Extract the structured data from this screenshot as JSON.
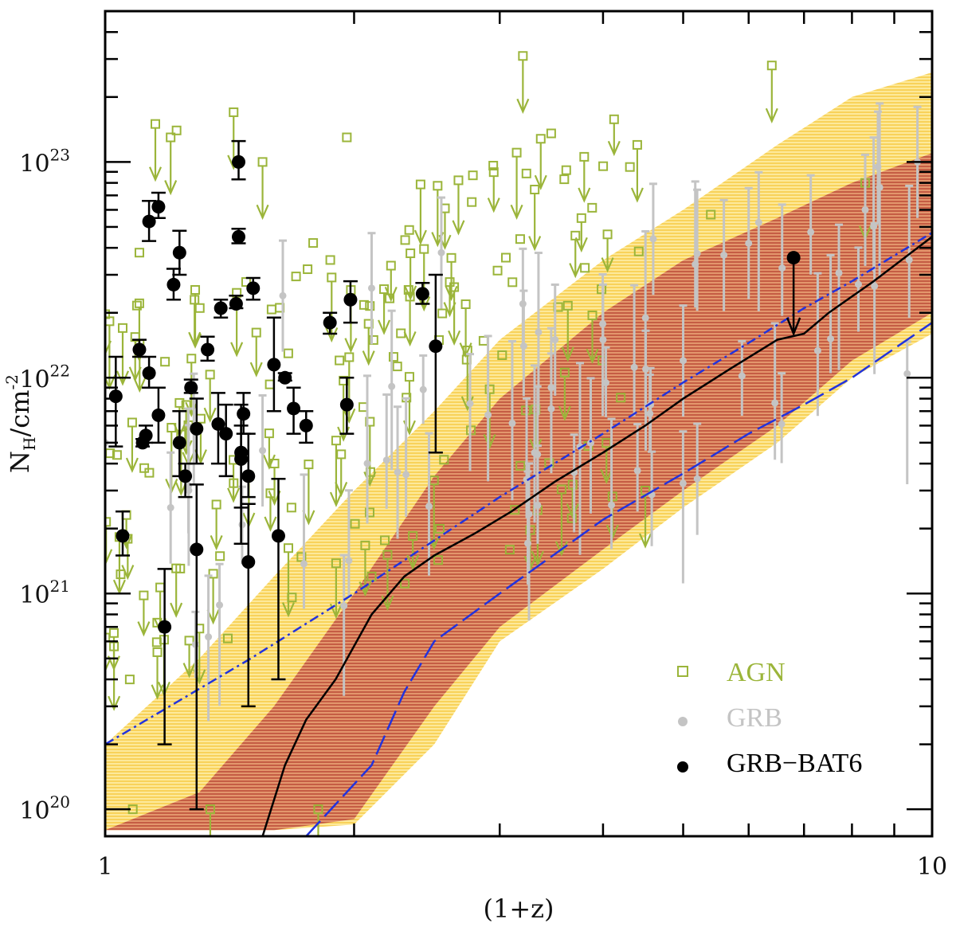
{
  "chart_data": {
    "type": "scatter",
    "xlabel": "(1+z)",
    "ylabel": "N_H/cm^-2",
    "xscale": "log",
    "yscale": "log",
    "xlim": [
      1,
      10
    ],
    "ylim": [
      7.5e+19,
      5e+23
    ],
    "x_tick_labels": [
      {
        "value": 1,
        "label": "1"
      },
      {
        "value": 10,
        "label": "10"
      }
    ],
    "y_tick_labels": [
      {
        "value": 1e+20,
        "base": "10",
        "exp": "20"
      },
      {
        "value": 1e+21,
        "base": "10",
        "exp": "21"
      },
      {
        "value": 1e+22,
        "base": "10",
        "exp": "22"
      },
      {
        "value": 1e+23,
        "base": "10",
        "exp": "23"
      }
    ],
    "colors": {
      "agn": "#9bb53a",
      "grb": "#c4c4c4",
      "bat6": "#000000",
      "outer_band": "#fbe487",
      "inner_band": "#cc6b4e",
      "model_line": "#000000",
      "blue_line": "#2233dd"
    },
    "bands": {
      "outer": {
        "x": [
          1.0,
          1.3,
          1.6,
          2.0,
          2.5,
          3.0,
          4.0,
          5.0,
          6.5,
          8.0,
          10.0
        ],
        "low": [
          8e+19,
          8e+19,
          8e+19,
          8.5e+19,
          2e+20,
          6e+20,
          1.3e+21,
          2.5e+21,
          5e+21,
          1e+22,
          1.6e+22
        ],
        "high": [
          2e+20,
          5e+20,
          1.2e+21,
          3e+21,
          7e+21,
          1.5e+22,
          3.5e+22,
          6e+22,
          1.2e+23,
          2e+23,
          2.6e+23
        ]
      },
      "inner": {
        "x": [
          1.0,
          1.3,
          1.6,
          2.0,
          2.5,
          3.0,
          4.0,
          5.0,
          6.5,
          8.0,
          10.0
        ],
        "low": [
          8e+19,
          8e+19,
          8e+19,
          9e+19,
          3e+20,
          7e+20,
          1.6e+21,
          3e+21,
          6e+21,
          1.2e+22,
          2e+22
        ],
        "high": [
          8e+19,
          1.2e+20,
          3e+20,
          1e+21,
          3.5e+21,
          8e+21,
          2e+22,
          3.5e+22,
          5.5e+22,
          8e+22,
          1.1e+23
        ]
      }
    },
    "series": [
      {
        "name": "model-median",
        "kind": "line",
        "x": [
          1.55,
          1.65,
          1.75,
          1.9,
          2.1,
          2.3,
          2.5,
          2.8,
          3.1,
          3.5,
          4.0,
          4.5,
          5.0,
          5.7,
          6.5,
          7.0,
          7.5,
          8.5,
          10.0
        ],
        "y": [
          7.5e+19,
          1.6e+20,
          2.6e+20,
          4e+20,
          8e+20,
          1.2e+21,
          1.5e+21,
          1.9e+21,
          2.4e+21,
          3.3e+21,
          4.5e+21,
          6e+21,
          8e+21,
          1.1e+22,
          1.5e+22,
          1.6e+22,
          2e+22,
          2.8e+22,
          4.5e+22
        ]
      },
      {
        "name": "dash-dot-upper",
        "kind": "line",
        "x": [
          1.0,
          1.5,
          2.0,
          3.0,
          4.0,
          5.0,
          6.0,
          7.0,
          8.0,
          10.0
        ],
        "y": [
          2e+20,
          5e+20,
          1e+21,
          2.8e+21,
          5.5e+21,
          9.5e+21,
          1.45e+22,
          2.1e+22,
          2.8e+22,
          4.7e+22
        ]
      },
      {
        "name": "dashed-lower",
        "kind": "line",
        "x": [
          1.75,
          2.1,
          2.3,
          2.5,
          3.0,
          4.0,
          5.0,
          6.0,
          7.0,
          8.0,
          10.0
        ],
        "y": [
          7.5e+19,
          1.6e+20,
          3.5e+20,
          6e+20,
          1e+21,
          2.2e+21,
          3.6e+21,
          5.5e+21,
          7.5e+21,
          1e+22,
          1.8e+22
        ]
      },
      {
        "name": "GRB-BAT6",
        "kind": "points",
        "points": [
          {
            "x": 1.03,
            "y": 8.2e+21,
            "lo": 4.8e+21,
            "hi": 1.25e+22
          },
          {
            "x": 1.05,
            "y": 1.85e+21,
            "lo": 1.5e+21,
            "hi": 2.4e+21
          },
          {
            "x": 1.1,
            "y": 1.35e+22,
            "lo": 1.25e+22,
            "hi": 1.5e+22
          },
          {
            "x": 1.11,
            "y": 5e+21,
            "lo": 4.8e+21,
            "hi": 5.2e+21
          },
          {
            "x": 1.12,
            "y": 5.4e+21,
            "lo": 5e+21,
            "hi": 6e+21
          },
          {
            "x": 1.13,
            "y": 1.05e+22,
            "lo": 9e+21,
            "hi": 1.25e+22
          },
          {
            "x": 1.13,
            "y": 5.3e+22,
            "lo": 4.3e+22,
            "hi": 6.6e+22
          },
          {
            "x": 1.16,
            "y": 6.2e+22,
            "lo": 5.5e+22,
            "hi": 7.2e+22
          },
          {
            "x": 1.16,
            "y": 6.7e+21,
            "lo": 5e+21,
            "hi": 9e+21
          },
          {
            "x": 1.18,
            "y": 7e+20,
            "lo": 2e+20,
            "hi": 1.3e+21
          },
          {
            "x": 1.21,
            "y": 2.7e+22,
            "lo": 2.3e+22,
            "hi": 3.2e+22
          },
          {
            "x": 1.23,
            "y": 3.8e+22,
            "lo": 3e+22,
            "hi": 4.8e+22
          },
          {
            "x": 1.23,
            "y": 5e+21,
            "lo": 3.5e+21,
            "hi": 7e+21
          },
          {
            "x": 1.25,
            "y": 3.5e+21,
            "lo": 2.8e+21,
            "hi": 4e+21
          },
          {
            "x": 1.27,
            "y": 9e+21,
            "lo": 8.5e+21,
            "hi": 9.8e+21
          },
          {
            "x": 1.29,
            "y": 5.8e+21,
            "lo": 4e+21,
            "hi": 8e+21
          },
          {
            "x": 1.29,
            "y": 1.6e+21,
            "lo": 1e+20,
            "hi": 3.2e+21
          },
          {
            "x": 1.33,
            "y": 1.35e+22,
            "lo": 1.2e+22,
            "hi": 1.55e+22
          },
          {
            "x": 1.37,
            "y": 6.1e+21,
            "lo": 4e+21,
            "hi": 8.5e+21
          },
          {
            "x": 1.38,
            "y": 2.1e+22,
            "lo": 1.9e+22,
            "hi": 2.3e+22
          },
          {
            "x": 1.4,
            "y": 5.5e+21,
            "lo": 3.5e+21,
            "hi": 7.5e+21
          },
          {
            "x": 1.44,
            "y": 2.2e+22,
            "lo": 2.1e+22,
            "hi": 2.4e+22
          },
          {
            "x": 1.45,
            "y": 4.5e+22,
            "lo": 4.2e+22,
            "hi": 4.9e+22
          },
          {
            "x": 1.45,
            "y": 1e+23,
            "lo": 8.3e+22,
            "hi": 1.25e+23
          },
          {
            "x": 1.46,
            "y": 4.5e+21,
            "lo": 1.7e+21,
            "hi": 7.5e+21
          },
          {
            "x": 1.46,
            "y": 4.2e+21,
            "lo": 2.5e+21,
            "hi": 6e+21
          },
          {
            "x": 1.47,
            "y": 6.8e+21,
            "lo": 5.5e+21,
            "hi": 8.5e+21
          },
          {
            "x": 1.49,
            "y": 3.5e+21,
            "lo": 2.8e+21,
            "hi": 5.5e+21
          },
          {
            "x": 1.49,
            "y": 1.4e+21,
            "lo": 3e+20,
            "hi": 2.6e+21
          },
          {
            "x": 1.51,
            "y": 2.6e+22,
            "lo": 2.3e+22,
            "hi": 2.9e+22
          },
          {
            "x": 1.6,
            "y": 1.15e+22,
            "lo": 7e+21,
            "hi": 1.9e+22
          },
          {
            "x": 1.62,
            "y": 1.85e+21,
            "lo": 4e+20,
            "hi": 3.4e+21
          },
          {
            "x": 1.65,
            "y": 1e+22,
            "lo": 9.7e+21,
            "hi": 1.05e+22
          },
          {
            "x": 1.69,
            "y": 7.2e+21,
            "lo": 5.5e+21,
            "hi": 9e+21
          },
          {
            "x": 1.75,
            "y": 6e+21,
            "lo": 5e+21,
            "hi": 7e+21
          },
          {
            "x": 1.87,
            "y": 1.8e+22,
            "lo": 1.6e+22,
            "hi": 2e+22
          },
          {
            "x": 1.96,
            "y": 7.5e+21,
            "lo": 5.5e+21,
            "hi": 1e+22
          },
          {
            "x": 1.98,
            "y": 2.3e+22,
            "lo": 1.8e+22,
            "hi": 2.8e+22
          },
          {
            "x": 2.42,
            "y": 2.45e+22,
            "lo": 2.2e+22,
            "hi": 2.75e+22
          },
          {
            "x": 2.51,
            "y": 1.4e+22,
            "lo": 4.5e+21,
            "hi": 3e+22
          }
        ],
        "upper_limits": [
          {
            "x": 6.8,
            "y": 3.6e+22,
            "to": 1.6e+22
          }
        ]
      },
      {
        "name": "GRB",
        "kind": "points",
        "sample_points": [
          {
            "x": 1.0,
            "y": 5e+21
          },
          {
            "x": 1.2,
            "y": 2.5e+21
          },
          {
            "x": 1.28,
            "y": 5.8e+21
          },
          {
            "x": 1.55,
            "y": 4.6e+21
          },
          {
            "x": 1.64,
            "y": 2.4e+22
          },
          {
            "x": 2.1,
            "y": 2.6e+22
          },
          {
            "x": 2.55,
            "y": 3.8e+22
          },
          {
            "x": 3.2,
            "y": 2.2e+22
          },
          {
            "x": 3.5,
            "y": 1.5e+22
          },
          {
            "x": 4.0,
            "y": 1.5e+22
          },
          {
            "x": 4.6,
            "y": 4.4e+22
          },
          {
            "x": 5.0,
            "y": 1.2e+22
          },
          {
            "x": 5.6,
            "y": 3.7e+22
          },
          {
            "x": 6.0,
            "y": 4.2e+22
          },
          {
            "x": 8.3,
            "y": 6e+22
          },
          {
            "x": 8.6,
            "y": 9.5e+22
          },
          {
            "x": 9.6,
            "y": 1e+23
          },
          {
            "x": 5.2,
            "y": 3.4e+21
          }
        ]
      },
      {
        "name": "AGN",
        "kind": "points",
        "sample_points": [
          {
            "x": 1.05,
            "y": 1.7e+22
          },
          {
            "x": 1.1,
            "y": 3.8e+22
          },
          {
            "x": 1.15,
            "y": 1.5e+23
          },
          {
            "x": 1.2,
            "y": 1.3e+23
          },
          {
            "x": 1.22,
            "y": 1.4e+23
          },
          {
            "x": 1.43,
            "y": 1.7e+23
          },
          {
            "x": 1.55,
            "y": 1e+23
          },
          {
            "x": 1.96,
            "y": 1.3e+23
          },
          {
            "x": 3.2,
            "y": 3.1e+23
          },
          {
            "x": 4.4,
            "y": 1.2e+23
          },
          {
            "x": 5.4,
            "y": 5.7e+22
          },
          {
            "x": 6.4,
            "y": 2.8e+23
          },
          {
            "x": 8.3,
            "y": 8e+22
          },
          {
            "x": 1.08,
            "y": 1e+20
          },
          {
            "x": 1.34,
            "y": 1e+20
          },
          {
            "x": 1.81,
            "y": 1e+20
          },
          {
            "x": 2.1,
            "y": 1.2e+21
          },
          {
            "x": 4.5,
            "y": 3e+21
          }
        ]
      }
    ],
    "legend": {
      "position": "bottom-right",
      "entries": [
        {
          "label": "AGN",
          "marker": "open-square",
          "color": "#9bb53a"
        },
        {
          "label": "GRB",
          "marker": "small-dot",
          "color": "#c4c4c4"
        },
        {
          "label": "GRB−BAT6",
          "marker": "dot",
          "color": "#000000"
        }
      ]
    }
  }
}
